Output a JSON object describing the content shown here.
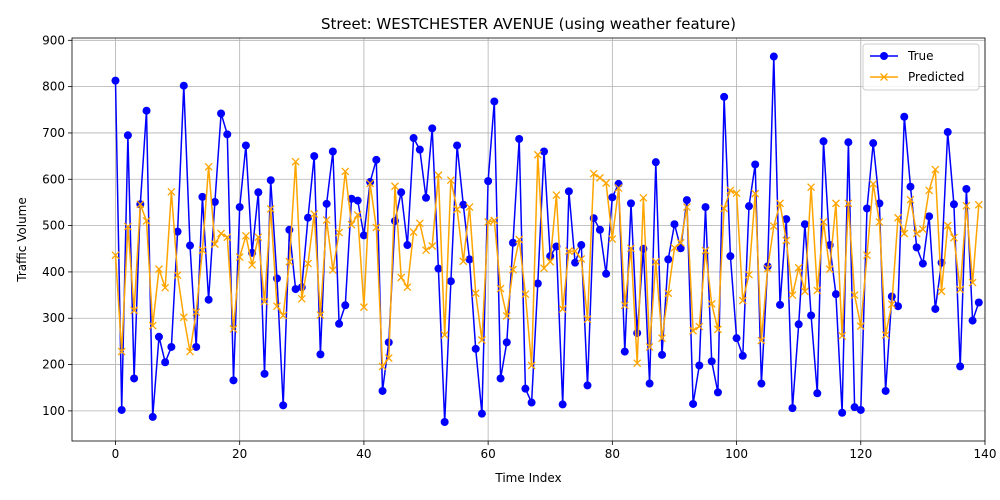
{
  "chart_data": {
    "type": "line",
    "title": "Street: WESTCHESTER AVENUE (using weather feature)",
    "xlabel": "Time Index",
    "ylabel": "Traffic Volume",
    "xlim": [
      -7,
      140
    ],
    "ylim": [
      35,
      905
    ],
    "xticks": [
      0,
      20,
      40,
      60,
      80,
      100,
      120,
      140
    ],
    "yticks": [
      100,
      200,
      300,
      400,
      500,
      600,
      700,
      800,
      900
    ],
    "grid": true,
    "legend_position": "top-right",
    "series": [
      {
        "name": "True",
        "color": "#0000ff",
        "marker": "circle",
        "values": [
          813,
          102,
          695,
          170,
          546,
          748,
          87,
          260,
          205,
          238,
          487,
          802,
          457,
          238,
          562,
          340,
          551,
          742,
          697,
          166,
          540,
          673,
          441,
          572,
          180,
          598,
          386,
          112,
          491,
          363,
          367,
          517,
          650,
          222,
          547,
          660,
          288,
          328,
          558,
          554,
          479,
          594,
          642,
          143,
          248,
          510,
          572,
          458,
          689,
          664,
          560,
          710,
          407,
          76,
          380,
          673,
          545,
          427,
          234,
          94,
          596,
          768,
          170,
          248,
          463,
          687,
          148,
          118,
          375,
          660,
          434,
          455,
          114,
          574,
          420,
          458,
          155,
          516,
          491,
          396,
          561,
          590,
          228,
          548,
          268,
          450,
          159,
          637,
          221,
          427,
          503,
          451,
          555,
          115,
          198,
          540,
          207,
          140,
          778,
          434,
          257,
          219,
          542,
          632,
          159,
          412,
          865,
          329,
          514,
          106,
          287,
          503,
          306,
          138,
          682,
          458,
          352,
          96,
          680,
          108,
          102,
          537,
          678,
          548,
          143,
          347,
          326,
          735,
          584,
          453,
          418,
          520,
          320,
          420,
          702,
          546,
          196,
          579,
          295,
          334
        ]
      },
      {
        "name": "Predicted",
        "color": "#ffa500",
        "marker": "x",
        "values": [
          436,
          228,
          498,
          317,
          546,
          510,
          284,
          406,
          366,
          573,
          393,
          302,
          228,
          313,
          447,
          627,
          460,
          483,
          475,
          277,
          432,
          478,
          415,
          475,
          336,
          536,
          326,
          306,
          422,
          638,
          342,
          418,
          525,
          307,
          512,
          404,
          485,
          617,
          502,
          523,
          324,
          591,
          496,
          196,
          214,
          585,
          388,
          367,
          486,
          505,
          447,
          456,
          609,
          264,
          598,
          535,
          423,
          540,
          354,
          253,
          508,
          511,
          364,
          305,
          405,
          470,
          352,
          198,
          653,
          408,
          422,
          566,
          320,
          445,
          445,
          428,
          298,
          612,
          603,
          592,
          471,
          581,
          328,
          451,
          203,
          560,
          238,
          422,
          257,
          354,
          452,
          463,
          540,
          273,
          282,
          446,
          331,
          276,
          537,
          576,
          570,
          338,
          394,
          569,
          252,
          407,
          499,
          548,
          468,
          350,
          409,
          358,
          583,
          360,
          508,
          406,
          548,
          262,
          548,
          350,
          283,
          436,
          590,
          508,
          264,
          330,
          517,
          483,
          556,
          483,
          492,
          576,
          621,
          358,
          500,
          474,
          362,
          543,
          377,
          545
        ]
      }
    ]
  }
}
